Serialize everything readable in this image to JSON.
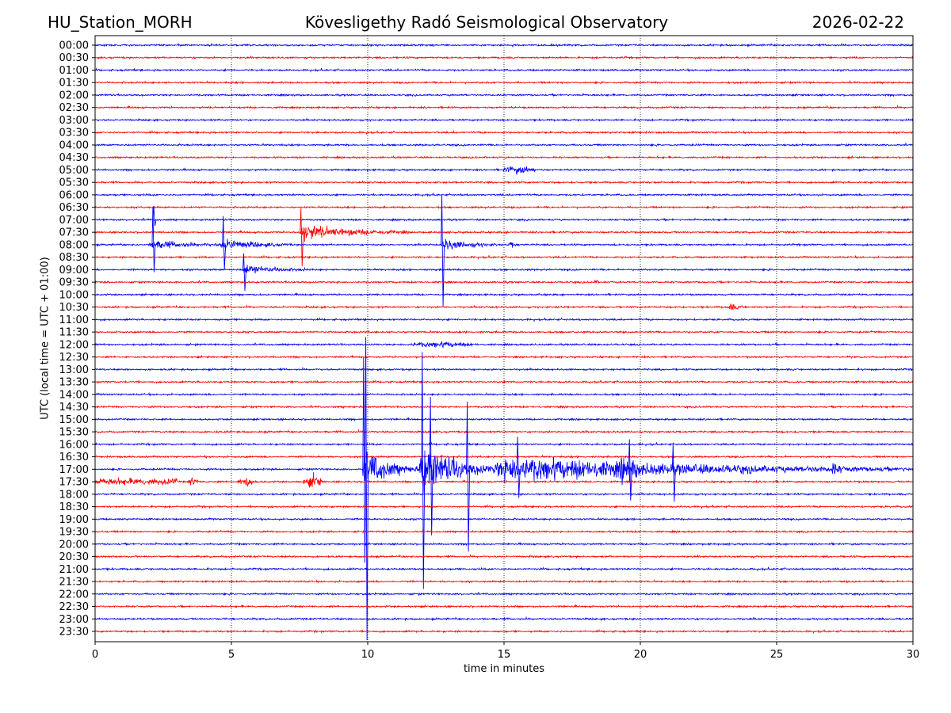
{
  "header": {
    "station": "HU_Station_MORH",
    "observatory": "Kövesligethy Radó Seismological Observatory",
    "date": "2026-02-22"
  },
  "chart_data": {
    "type": "line",
    "title": "Kövesligethy Radó Seismological Observatory",
    "xlabel": "time in minutes",
    "ylabel": "UTC (local time = UTC + 01:00)",
    "xlim": [
      0,
      30
    ],
    "x_ticks": [
      "0",
      "5",
      "10",
      "15",
      "20",
      "25",
      "30"
    ],
    "grid": "vertical dotted at every 5 minutes",
    "trace_colors": [
      "#0000ff",
      "#ff0000"
    ],
    "y_tick_labels": [
      "00:00",
      "00:30",
      "01:00",
      "01:30",
      "02:00",
      "02:30",
      "03:00",
      "03:30",
      "04:00",
      "04:30",
      "05:00",
      "05:30",
      "06:00",
      "06:30",
      "07:00",
      "07:30",
      "08:00",
      "08:30",
      "09:00",
      "09:30",
      "10:00",
      "10:30",
      "11:00",
      "11:30",
      "12:00",
      "12:30",
      "13:00",
      "13:30",
      "14:00",
      "14:30",
      "15:00",
      "15:30",
      "16:00",
      "16:30",
      "17:00",
      "17:30",
      "18:00",
      "18:30",
      "19:00",
      "19:30",
      "20:00",
      "20:30",
      "21:00",
      "21:30",
      "22:00",
      "22:30",
      "23:00",
      "23:30"
    ],
    "amplitude_unit": "trace spacing",
    "events": [
      {
        "row": 10,
        "start": 14.8,
        "end": 16.3,
        "amp": 0.3,
        "shape": "spindle"
      },
      {
        "row": 15,
        "start": 7.5,
        "end": 11.5,
        "amp": 0.8,
        "shape": "decay"
      },
      {
        "row": 16,
        "start": 2.0,
        "end": 4.6,
        "amp": 0.5,
        "shape": "decay"
      },
      {
        "row": 16,
        "start": 4.6,
        "end": 7.2,
        "amp": 0.6,
        "shape": "decay"
      },
      {
        "row": 16,
        "start": 12.7,
        "end": 14.8,
        "amp": 0.6,
        "shape": "decay"
      },
      {
        "row": 16,
        "start": 15.2,
        "end": 15.6,
        "amp": 0.4,
        "shape": "decay"
      },
      {
        "row": 18,
        "start": 5.4,
        "end": 7.8,
        "amp": 0.5,
        "shape": "decay"
      },
      {
        "row": 19,
        "start": 18.3,
        "end": 18.5,
        "amp": 0.3,
        "shape": "decay"
      },
      {
        "row": 21,
        "start": 23.2,
        "end": 23.9,
        "amp": 0.4,
        "shape": "decay"
      },
      {
        "row": 24,
        "start": 11.2,
        "end": 14.1,
        "amp": 0.2,
        "shape": "spindle"
      },
      {
        "row": 34,
        "start": 9.8,
        "end": 11.9,
        "amp": 2.2,
        "shape": "decay"
      },
      {
        "row": 34,
        "start": 11.9,
        "end": 14.6,
        "amp": 3.0,
        "shape": "decay"
      },
      {
        "row": 34,
        "start": 14.6,
        "end": 30,
        "amp": 1.4,
        "shape": "decay"
      },
      {
        "row": 34,
        "start": 19.3,
        "end": 20.0,
        "amp": 1.2,
        "shape": "decay"
      },
      {
        "row": 34,
        "start": 27.0,
        "end": 27.6,
        "amp": 0.6,
        "shape": "decay"
      },
      {
        "row": 35,
        "start": 0.0,
        "end": 3.0,
        "amp": 0.25,
        "shape": "flat"
      },
      {
        "row": 35,
        "start": 3.4,
        "end": 3.8,
        "amp": 0.4,
        "shape": "spindle"
      },
      {
        "row": 35,
        "start": 5.2,
        "end": 5.9,
        "amp": 0.45,
        "shape": "spindle"
      },
      {
        "row": 35,
        "start": 7.6,
        "end": 8.4,
        "amp": 0.55,
        "shape": "spindle"
      }
    ],
    "spikes": [
      {
        "row": 14,
        "minute": 2.15,
        "up": 1.1,
        "down": 0.5
      },
      {
        "row": 16,
        "minute": 2.12,
        "up": 3.0,
        "down": 2.2
      },
      {
        "row": 16,
        "minute": 4.7,
        "up": 2.3,
        "down": 2.0
      },
      {
        "row": 15,
        "minute": 7.55,
        "up": 1.9,
        "down": 2.7
      },
      {
        "row": 16,
        "minute": 12.72,
        "up": 4.0,
        "down": 5.0
      },
      {
        "row": 18,
        "minute": 5.45,
        "up": 1.3,
        "down": 1.7
      },
      {
        "row": 34,
        "minute": 9.85,
        "up": 9.0,
        "down": 7.5
      },
      {
        "row": 34,
        "minute": 9.93,
        "up": 10.6,
        "down": 13.7
      },
      {
        "row": 34,
        "minute": 12.0,
        "up": 9.4,
        "down": 9.6
      },
      {
        "row": 34,
        "minute": 12.3,
        "up": 5.8,
        "down": 5.3
      },
      {
        "row": 34,
        "minute": 13.65,
        "up": 5.4,
        "down": 6.6
      },
      {
        "row": 34,
        "minute": 15.5,
        "up": 2.6,
        "down": 2.3
      },
      {
        "row": 34,
        "minute": 21.2,
        "up": 2.0,
        "down": 2.6
      },
      {
        "row": 34,
        "minute": 19.6,
        "up": 2.4,
        "down": 2.5
      }
    ]
  }
}
